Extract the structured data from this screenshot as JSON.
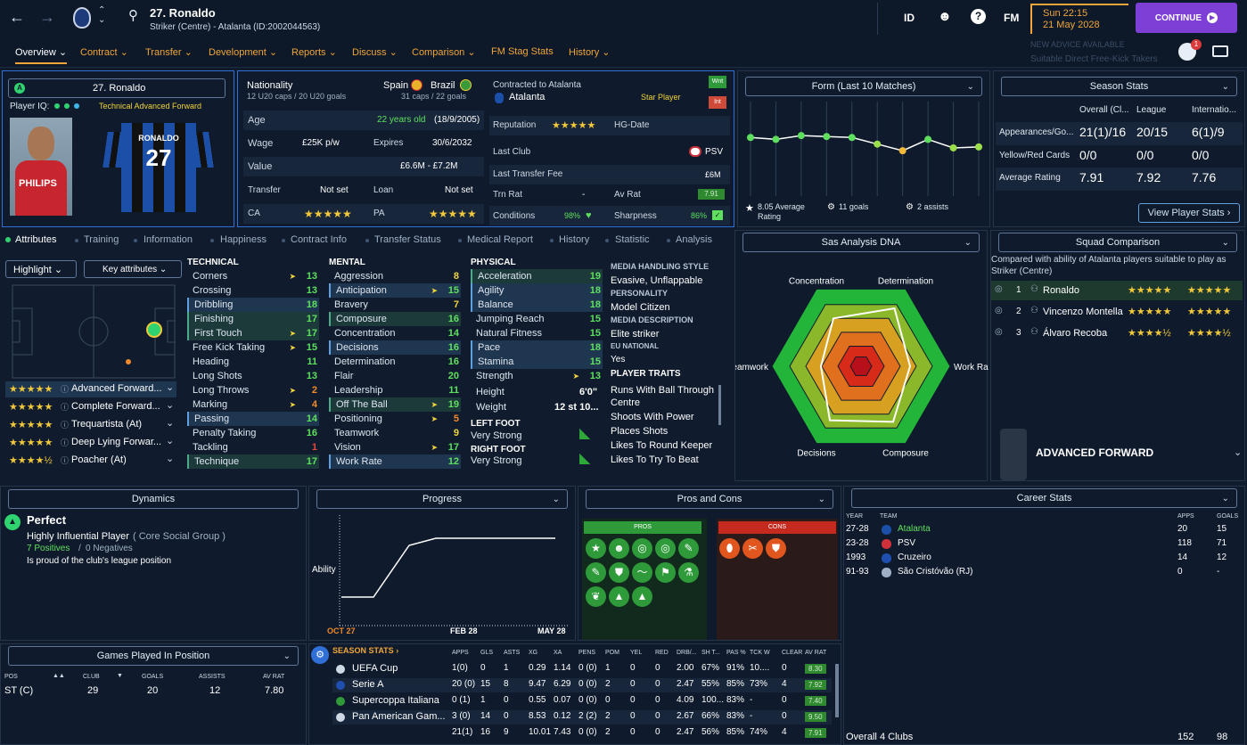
{
  "header": {
    "player_name": "27. Ronaldo",
    "player_sub": "Striker (Centre) - Atalanta (ID:2002044563)",
    "id_label": "ID",
    "fm_label": "FM",
    "date_line1": "Sun 22:15",
    "date_line2": "21 May 2028",
    "continue_label": "CONTINUE",
    "advice_line1": "NEW ADVICE AVAILABLE",
    "advice_line2": "Suitable Direct Free-Kick Takers",
    "notification_count": "1"
  },
  "nav": [
    "Overview",
    "Contract",
    "Transfer",
    "Development",
    "Reports",
    "Discuss",
    "Comparison",
    "FM Stag Stats",
    "History"
  ],
  "profile": {
    "name": "27. Ronaldo",
    "iq_label": "Player IQ:",
    "role": "Technical Advanced Forward",
    "shirt_name": "RONALDO",
    "shirt_number": "27",
    "sponsor": "PHILIPS"
  },
  "info": {
    "nationality_label": "Nationality",
    "nat1": "Spain",
    "nat2": "Brazil",
    "u20": "12 U20 caps / 20 U20 goals",
    "caps": "31 caps / 22 goals",
    "age_label": "Age",
    "age_value": "22 years old",
    "dob": "(18/9/2005)",
    "wage_label": "Wage",
    "wage_value": "£25K p/w",
    "expires_label": "Expires",
    "expires_value": "30/6/2032",
    "value_label": "Value",
    "value_value": "£6.6M - £7.2M",
    "transfer_label": "Transfer",
    "transfer_value": "Not set",
    "loan_label": "Loan",
    "loan_value": "Not set",
    "ca_label": "CA",
    "pa_label": "PA"
  },
  "contract": {
    "contracted_label": "Contracted to Atalanta",
    "club": "Atalanta",
    "status": "Star Player",
    "wnt": "Wnt",
    "int": "Int",
    "reputation_label": "Reputation",
    "hg_label": "HG-Date",
    "last_club_label": "Last Club",
    "last_club": "PSV",
    "fee_label": "Last Transfer Fee",
    "fee": "£6M",
    "trn_label": "Trn Rat",
    "trn_value": "-",
    "av_label": "Av Rat",
    "av_value": "7.91",
    "cond_label": "Conditions",
    "cond_value": "98%",
    "sharp_label": "Sharpness",
    "sharp_value": "86%"
  },
  "form": {
    "title": "Form (Last 10 Matches)",
    "values": [
      0.62,
      0.6,
      0.64,
      0.63,
      0.62,
      0.55,
      0.48,
      0.6,
      0.51,
      0.52
    ],
    "avg_label": "8.05 Average Rating",
    "goals_label": "11 goals",
    "assists_label": "2 assists"
  },
  "season": {
    "title": "Season Stats",
    "cols": [
      "Overall (Cl...",
      "League",
      "Internatio..."
    ],
    "rows": [
      {
        "label": "Appearances/Go...",
        "v": [
          "21(1)/16",
          "20/15",
          "6(1)/9"
        ]
      },
      {
        "label": "Yellow/Red Cards",
        "v": [
          "0/0",
          "0/0",
          "0/0"
        ]
      },
      {
        "label": "Average Rating",
        "v": [
          "7.91",
          "7.92",
          "7.76"
        ]
      }
    ],
    "button": "View Player Stats"
  },
  "subtabs": [
    "Attributes",
    "Training",
    "Information",
    "Happiness",
    "Contract Info",
    "Transfer Status",
    "Medical Report",
    "History",
    "Statistic",
    "Analysis"
  ],
  "pitch": {
    "highlight_label": "Highlight",
    "key_attr_label": "Key attributes",
    "roles": [
      {
        "name": "Advanced Forward...",
        "stars": "★★★★★"
      },
      {
        "name": "Complete Forward...",
        "stars": "★★★★★"
      },
      {
        "name": "Trequartista (At)",
        "stars": "★★★★★"
      },
      {
        "name": "Deep Lying Forwar...",
        "stars": "★★★★★"
      },
      {
        "name": "Poacher (At)",
        "stars": "★★★★½"
      }
    ]
  },
  "technical": {
    "title": "TECHNICAL",
    "items": [
      {
        "n": "Corners",
        "v": "13",
        "c": "green",
        "s": "",
        "a": "1"
      },
      {
        "n": "Crossing",
        "v": "13",
        "c": "green",
        "s": "",
        "a": ""
      },
      {
        "n": "Dribbling",
        "v": "18",
        "c": "green",
        "s": "hl",
        "a": ""
      },
      {
        "n": "Finishing",
        "v": "17",
        "c": "green",
        "s": "key",
        "a": ""
      },
      {
        "n": "First Touch",
        "v": "17",
        "c": "green",
        "s": "key",
        "a": "1"
      },
      {
        "n": "Free Kick Taking",
        "v": "15",
        "c": "green",
        "s": "",
        "a": "1"
      },
      {
        "n": "Heading",
        "v": "11",
        "c": "green",
        "s": "",
        "a": ""
      },
      {
        "n": "Long Shots",
        "v": "13",
        "c": "green",
        "s": "",
        "a": ""
      },
      {
        "n": "Long Throws",
        "v": "2",
        "c": "orange",
        "s": "",
        "a": "1"
      },
      {
        "n": "Marking",
        "v": "4",
        "c": "orange",
        "s": "",
        "a": "1"
      },
      {
        "n": "Passing",
        "v": "14",
        "c": "green",
        "s": "hl",
        "a": ""
      },
      {
        "n": "Penalty Taking",
        "v": "16",
        "c": "green",
        "s": "",
        "a": ""
      },
      {
        "n": "Tackling",
        "v": "1",
        "c": "red",
        "s": "",
        "a": ""
      },
      {
        "n": "Technique",
        "v": "17",
        "c": "green",
        "s": "key",
        "a": ""
      }
    ]
  },
  "mental": {
    "title": "MENTAL",
    "items": [
      {
        "n": "Aggression",
        "v": "8",
        "c": "yellow",
        "s": "",
        "a": ""
      },
      {
        "n": "Anticipation",
        "v": "15",
        "c": "green",
        "s": "hl",
        "a": "1"
      },
      {
        "n": "Bravery",
        "v": "7",
        "c": "yellow",
        "s": "",
        "a": ""
      },
      {
        "n": "Composure",
        "v": "16",
        "c": "green",
        "s": "key",
        "a": ""
      },
      {
        "n": "Concentration",
        "v": "14",
        "c": "green",
        "s": "",
        "a": ""
      },
      {
        "n": "Decisions",
        "v": "16",
        "c": "green",
        "s": "hl",
        "a": ""
      },
      {
        "n": "Determination",
        "v": "16",
        "c": "green",
        "s": "",
        "a": ""
      },
      {
        "n": "Flair",
        "v": "20",
        "c": "green",
        "s": "",
        "a": ""
      },
      {
        "n": "Leadership",
        "v": "11",
        "c": "green",
        "s": "",
        "a": ""
      },
      {
        "n": "Off The Ball",
        "v": "19",
        "c": "green",
        "s": "key",
        "a": "1"
      },
      {
        "n": "Positioning",
        "v": "5",
        "c": "orange",
        "s": "",
        "a": "1"
      },
      {
        "n": "Teamwork",
        "v": "9",
        "c": "yellow",
        "s": "",
        "a": ""
      },
      {
        "n": "Vision",
        "v": "17",
        "c": "green",
        "s": "",
        "a": "1"
      },
      {
        "n": "Work Rate",
        "v": "12",
        "c": "green",
        "s": "hl",
        "a": ""
      }
    ]
  },
  "physical": {
    "title": "PHYSICAL",
    "items": [
      {
        "n": "Acceleration",
        "v": "19",
        "c": "green",
        "s": "key",
        "a": ""
      },
      {
        "n": "Agility",
        "v": "18",
        "c": "green",
        "s": "hl",
        "a": ""
      },
      {
        "n": "Balance",
        "v": "18",
        "c": "green",
        "s": "hl",
        "a": ""
      },
      {
        "n": "Jumping Reach",
        "v": "15",
        "c": "green",
        "s": "",
        "a": ""
      },
      {
        "n": "Natural Fitness",
        "v": "15",
        "c": "green",
        "s": "",
        "a": ""
      },
      {
        "n": "Pace",
        "v": "18",
        "c": "green",
        "s": "hl",
        "a": ""
      },
      {
        "n": "Stamina",
        "v": "15",
        "c": "green",
        "s": "hl",
        "a": ""
      },
      {
        "n": "Strength",
        "v": "13",
        "c": "green",
        "s": "",
        "a": "1"
      }
    ],
    "height_label": "Height",
    "height": "6'0\"",
    "weight_label": "Weight",
    "weight": "12 st 10...",
    "left_foot_label": "LEFT FOOT",
    "left_foot": "Very Strong",
    "right_foot_label": "RIGHT FOOT",
    "right_foot": "Very Strong"
  },
  "media": {
    "mh_label": "MEDIA HANDLING STYLE",
    "mh": "Evasive, Unflappable",
    "pers_label": "PERSONALITY",
    "pers": "Model Citizen",
    "md_label": "MEDIA DESCRIPTION",
    "md": "Elite striker",
    "eu_label": "EU NATIONAL",
    "eu": "Yes",
    "traits_label": "PLAYER TRAITS",
    "traits": [
      "Runs With Ball Through Centre",
      "Shoots With Power",
      "Places Shots",
      "Likes To Round Keeper",
      "Likes To Try To Beat Offside Trap"
    ]
  },
  "dna": {
    "title": "Sas Analysis DNA",
    "labels": [
      "Concentration",
      "Determination",
      "Work Rate",
      "Composure",
      "Decisions",
      "Teamwork"
    ],
    "values": [
      0.62,
      0.75,
      0.55,
      0.72,
      0.7,
      0.45
    ]
  },
  "squad": {
    "title": "Squad Comparison",
    "desc": "Compared with ability of Atalanta players suitable to play as Striker (Centre)",
    "rows": [
      {
        "rank": "1",
        "name": "Ronaldo",
        "s1": "★★★★★",
        "s2": "★★★★★"
      },
      {
        "rank": "2",
        "name": "Vincenzo Montella",
        "s1": "★★★★★",
        "s2": "★★★★★"
      },
      {
        "rank": "3",
        "name": "Álvaro Recoba",
        "s1": "★★★★½",
        "s2": "★★★★½"
      }
    ],
    "role_label": "ADVANCED FORWARD"
  },
  "dynamics": {
    "title": "Dynamics",
    "status": "Perfect",
    "influence": "Highly Influential Player",
    "group": "( Core Social Group )",
    "positives": "7 Positives",
    "sep": "/",
    "negatives": "0 Negatives",
    "note": "Is proud of the club's league position"
  },
  "progress": {
    "title": "Progress",
    "ylabel": "Ability",
    "x_labels": [
      "OCT 27",
      "FEB 28",
      "MAY 28"
    ]
  },
  "pros": {
    "title": "Pros and Cons",
    "pros_label": "PROS",
    "cons_label": "CONS",
    "pros_icons": [
      "star-icon",
      "head-icon",
      "target-icon",
      "target-icon",
      "boot-icon",
      "boot-icon",
      "shield-icon",
      "wave-icon",
      "running-icon",
      "flask-icon",
      "foot-icon",
      "cone-icon",
      "cone-icon"
    ],
    "cons_icons": [
      "boots-icon",
      "tackle-icon",
      "shield-icon"
    ]
  },
  "career": {
    "title": "Career Stats",
    "cols": [
      "YEAR",
      "TEAM",
      "APPS",
      "GOALS"
    ],
    "rows": [
      {
        "year": "27-28",
        "team": "Atalanta",
        "apps": "20",
        "goals": "15"
      },
      {
        "year": "23-28",
        "team": "PSV",
        "apps": "118",
        "goals": "71"
      },
      {
        "year": "1993",
        "team": "Cruzeiro",
        "apps": "14",
        "goals": "12"
      },
      {
        "year": "91-93",
        "team": "São Cristóvão (RJ)",
        "apps": "0",
        "goals": "-"
      }
    ],
    "total_label": "Overall",
    "total_clubs": "4 Clubs",
    "total_apps": "152",
    "total_goals": "98"
  },
  "games": {
    "title": "Games Played In Position",
    "cols": [
      "POS",
      "CLUB",
      "GOALS",
      "ASSISTS",
      "AV RAT"
    ],
    "row": [
      "ST (C)",
      "29",
      "20",
      "12",
      "7.80"
    ]
  },
  "season_stats": {
    "title": "SEASON STATS",
    "cols": [
      "APPS",
      "GLS",
      "ASTS",
      "XG",
      "XA",
      "PENS",
      "POM",
      "YEL",
      "RED",
      "DRB/...",
      "SH T...",
      "PAS %",
      "TCK W",
      "CLEAR",
      "AV RAT"
    ],
    "rows": [
      {
        "comp": "UEFA Cup",
        "v": [
          "1(0)",
          "0",
          "1",
          "0.29",
          "1.14",
          "0 (0)",
          "1",
          "0",
          "0",
          "2.00",
          "67%",
          "91%",
          "10....",
          "0",
          "8.30"
        ]
      },
      {
        "comp": "Serie A",
        "v": [
          "20 (0)",
          "15",
          "8",
          "9.47",
          "6.29",
          "0 (0)",
          "2",
          "0",
          "0",
          "2.47",
          "55%",
          "85%",
          "73%",
          "4",
          "7.92"
        ]
      },
      {
        "comp": "Supercoppa Italiana",
        "v": [
          "0 (1)",
          "1",
          "0",
          "0.55",
          "0.07",
          "0 (0)",
          "0",
          "0",
          "0",
          "4.09",
          "100...",
          "83%",
          "-",
          "0",
          "7.40"
        ]
      },
      {
        "comp": "Pan American Gam...",
        "v": [
          "3 (0)",
          "14",
          "0",
          "8.53",
          "0.12",
          "2 (2)",
          "2",
          "0",
          "0",
          "2.67",
          "66%",
          "83%",
          "-",
          "0",
          "9.50"
        ]
      },
      {
        "comp": "",
        "v": [
          "21(1)",
          "16",
          "9",
          "10.01",
          "7.43",
          "0 (0)",
          "2",
          "0",
          "0",
          "2.47",
          "56%",
          "85%",
          "74%",
          "4",
          "7.91"
        ]
      }
    ]
  }
}
